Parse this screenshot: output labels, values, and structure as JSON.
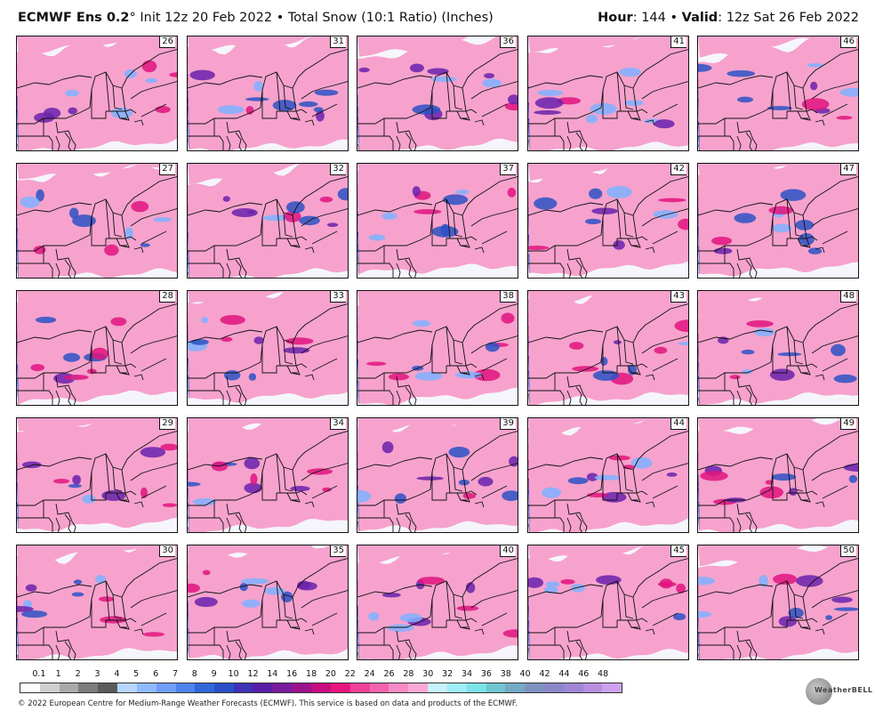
{
  "header": {
    "model": "ECMWF Ens 0.2",
    "degree": "°",
    "init": "Init 12z 20 Feb 2022",
    "bullet": "•",
    "product": "Total Snow (10:1 Ratio) (Inches)",
    "hour_label": "Hour",
    "hour_value": ": 144",
    "valid_label": "Valid",
    "valid_value": ": 12z Sat 26 Feb 2022"
  },
  "members": [
    [
      "26",
      "31",
      "36",
      "41",
      "46"
    ],
    [
      "27",
      "32",
      "37",
      "42",
      "47"
    ],
    [
      "28",
      "33",
      "38",
      "43",
      "48"
    ],
    [
      "29",
      "34",
      "39",
      "44",
      "49"
    ],
    [
      "30",
      "35",
      "40",
      "45",
      "50"
    ]
  ],
  "colorbar": {
    "labels": [
      "0.1",
      "1",
      "2",
      "3",
      "4",
      "5",
      "6",
      "7",
      "8",
      "9",
      "10",
      "12",
      "14",
      "16",
      "18",
      "20",
      "22",
      "24",
      "26",
      "28",
      "30",
      "32",
      "34",
      "36",
      "38",
      "40",
      "42",
      "44",
      "46",
      "48"
    ],
    "colors": [
      "#ffffff",
      "#cfcfcf",
      "#a9a9a9",
      "#7d7d7d",
      "#5a5a5a",
      "#b7d6ff",
      "#8fbaff",
      "#6f9ff8",
      "#4c84ec",
      "#2f68d8",
      "#2a4fc8",
      "#3c32b4",
      "#5a1ea8",
      "#7a1a9e",
      "#9c128e",
      "#c80c82",
      "#e9157f",
      "#f0409a",
      "#f463af",
      "#f78bc4",
      "#f9a9d3",
      "#c6f2fb",
      "#9eeef6",
      "#7ae2e8",
      "#6fc6cf",
      "#76a9c6",
      "#7f93c2",
      "#8b86c8",
      "#a086d4",
      "#b98fe0",
      "#cfa0ee"
    ]
  },
  "footer": "© 2022 European Centre for Medium-Range Weather Forecasts (ECMWF). This service is based on data and products of the ECMWF.",
  "logo_text": "WeatherBELL",
  "palette": {
    "white": "#f5f6fc",
    "gray_light": "#c9c9c9",
    "gray_dark": "#6d6d6d",
    "blue_light": "#7fb2ff",
    "blue": "#3a78e6",
    "blue_dark": "#2c52c4",
    "purple": "#6a22ab",
    "magenta": "#e0147e",
    "pink": "#f36aac",
    "pink_light": "#f6a2cd",
    "cyan": "#9ee8f2"
  }
}
